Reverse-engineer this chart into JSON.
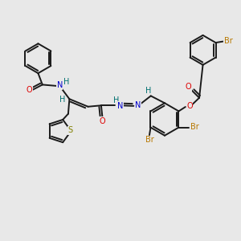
{
  "bg_color": "#e8e8e8",
  "bond_color": "#1a1a1a",
  "bond_width": 1.4,
  "atom_colors": {
    "O": "#dd0000",
    "N": "#0000cc",
    "S": "#808000",
    "Br": "#b87800",
    "H": "#007070",
    "C": "#1a1a1a"
  },
  "font_size": 7.0
}
